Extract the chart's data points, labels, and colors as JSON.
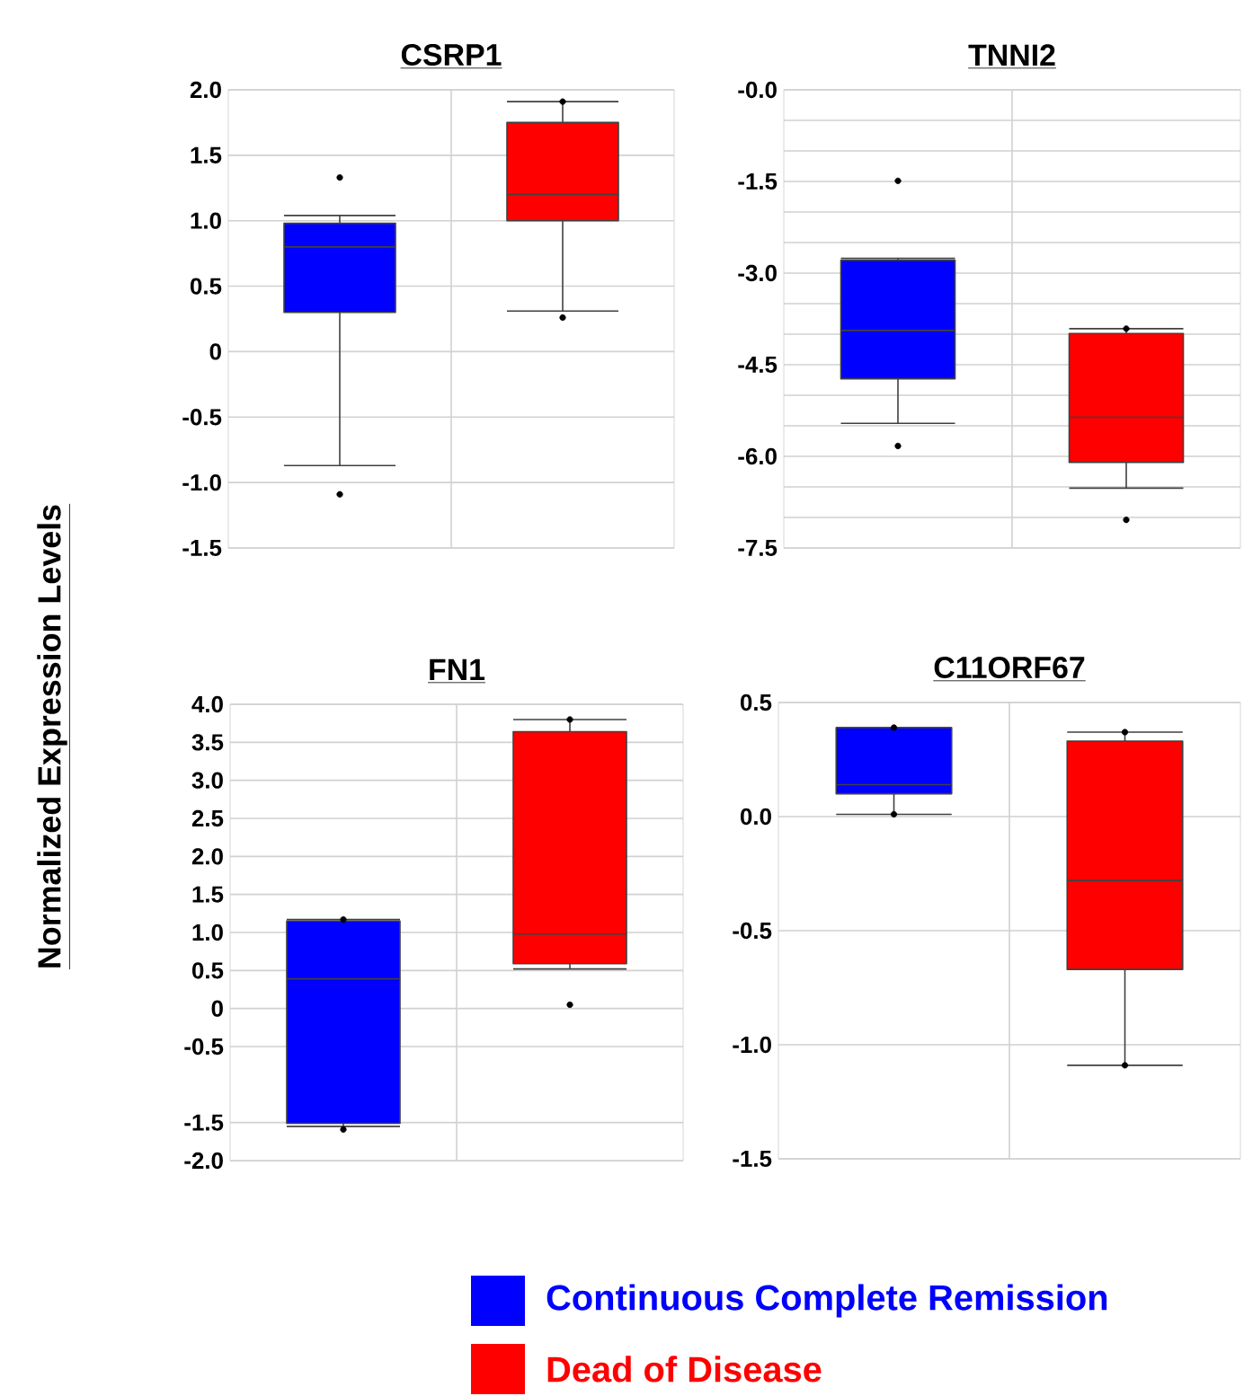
{
  "chart_data": [
    {
      "type": "box",
      "title": "CSRP1",
      "ylabel": "Normalized Expression Levels",
      "categories": [
        null,
        null
      ],
      "ylim": [
        -1.5,
        2.0
      ],
      "yticks": [
        {
          "value": 2,
          "label": "2.0"
        },
        1.5,
        {
          "value": 1,
          "label": "1.0"
        },
        0.5,
        0,
        -0.5,
        {
          "value": -1,
          "label": "-1.0"
        },
        -1.5
      ],
      "grid": true,
      "legend": false,
      "series": [
        {
          "color": "#0000ff",
          "boxes": [
            {
              "low": -0.87,
              "q1": 0.3,
              "median": 0.8,
              "q3": 0.98,
              "high": 1.04,
              "outliers": [
                1.33,
                -1.09
              ]
            },
            null
          ]
        },
        {
          "color": "#ff0000",
          "boxes": [
            null,
            {
              "low": 0.31,
              "q1": 1.0,
              "median": 1.2,
              "q3": 1.75,
              "high": 1.91,
              "outliers": [
                1.91,
                0.26
              ]
            }
          ]
        }
      ]
    },
    {
      "type": "box",
      "title": "TNNI2",
      "categories": [
        null,
        null
      ],
      "ylim": [
        -7.5,
        0
      ],
      "yticks": [
        {
          "value": 0,
          "label": "-0.0"
        },
        {
          "value": -0.5,
          "label": null
        },
        {
          "value": -1.0,
          "label": null
        },
        -1.5,
        {
          "value": -2.0,
          "label": null
        },
        {
          "value": -2.5,
          "label": null
        },
        {
          "value": -3,
          "label": "-3.0"
        },
        {
          "value": -3.5,
          "label": null
        },
        {
          "value": -4.0,
          "label": null
        },
        -4.5,
        {
          "value": -5.0,
          "label": null
        },
        {
          "value": -5.5,
          "label": null
        },
        {
          "value": -6,
          "label": "-6.0"
        },
        {
          "value": -6.5,
          "label": null
        },
        {
          "value": -7.0,
          "label": null
        },
        -7.5
      ],
      "grid": true,
      "legend": false,
      "series": [
        {
          "color": "#0000ff",
          "boxes": [
            {
              "low": -5.46,
              "q1": -4.73,
              "median": -3.94,
              "q3": -2.79,
              "high": -2.76,
              "outliers": [
                -1.49,
                -5.83
              ]
            },
            null
          ]
        },
        {
          "color": "#ff0000",
          "boxes": [
            null,
            {
              "low": -6.52,
              "q1": -6.1,
              "median": -5.36,
              "q3": -3.99,
              "high": -3.91,
              "outliers": [
                -3.91,
                -7.04
              ]
            }
          ]
        }
      ]
    },
    {
      "type": "box",
      "title": "FN1",
      "categories": [
        null,
        null
      ],
      "ylim": [
        -2.0,
        4.0
      ],
      "yticks": [
        {
          "value": 4,
          "label": "4.0"
        },
        3.5,
        {
          "value": 3,
          "label": "3.0"
        },
        2.5,
        {
          "value": 2,
          "label": "2.0"
        },
        1.5,
        {
          "value": 1,
          "label": "1.0"
        },
        0.5,
        0,
        -0.5,
        -1.5,
        {
          "value": -2,
          "label": "-2.0"
        }
      ],
      "grid": true,
      "legend": false,
      "series": [
        {
          "color": "#0000ff",
          "boxes": [
            {
              "low": -1.55,
              "q1": -1.51,
              "median": 0.39,
              "q3": 1.15,
              "high": 1.17,
              "outliers": [
                1.17,
                -1.59
              ]
            },
            null
          ]
        },
        {
          "color": "#ff0000",
          "boxes": [
            null,
            {
              "low": 0.52,
              "q1": 0.59,
              "median": 0.98,
              "q3": 3.64,
              "high": 3.8,
              "outliers": [
                3.8,
                0.05
              ]
            }
          ]
        }
      ]
    },
    {
      "type": "box",
      "title": "C11ORF67",
      "categories": [
        null,
        null
      ],
      "ylim": [
        -1.5,
        0.5
      ],
      "yticks": [
        0.5,
        {
          "value": 0,
          "label": "0.0"
        },
        -0.5,
        {
          "value": -1,
          "label": "-1.0"
        },
        -1.5
      ],
      "grid": true,
      "legend": "bottom",
      "series": [
        {
          "name": "Continuous Complete Remission",
          "color": "#0000ff",
          "boxes": [
            {
              "low": 0.01,
              "q1": 0.1,
              "median": 0.14,
              "q3": 0.39,
              "high": 0.39,
              "outliers": [
                0.39,
                0.01
              ]
            },
            null
          ]
        },
        {
          "name": "Dead of Disease",
          "color": "#ff0000",
          "boxes": [
            null,
            {
              "low": -1.09,
              "q1": -0.67,
              "median": -0.28,
              "q3": 0.33,
              "high": 0.37,
              "outliers": [
                0.37,
                -1.09
              ]
            }
          ]
        }
      ]
    }
  ]
}
